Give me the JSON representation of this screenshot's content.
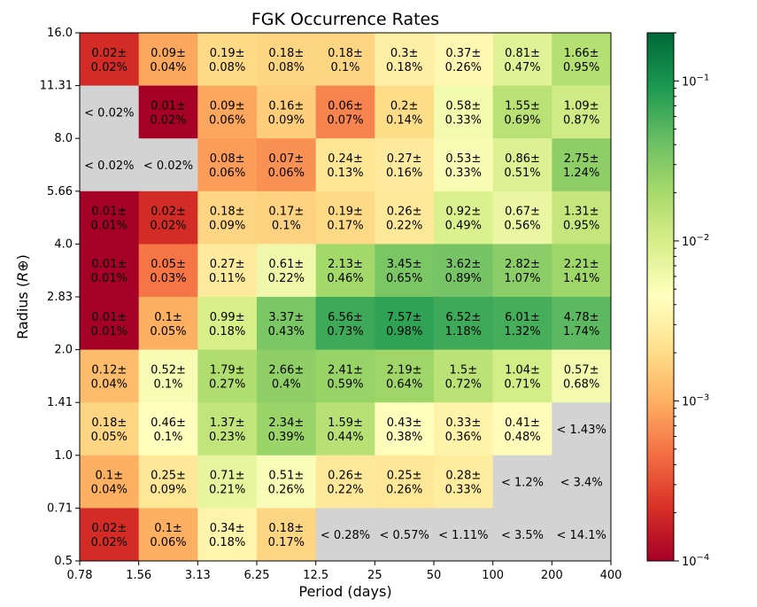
{
  "chart_data": {
    "type": "heatmap",
    "title": "FGK Occurrence Rates",
    "xlabel": "Period (days)",
    "ylabel_main": "Radius (",
    "ylabel_symbol": "R⊕",
    "ylabel_close": ")",
    "x_edges": [
      "0.78",
      "1.56",
      "3.13",
      "6.25",
      "12.5",
      "25",
      "50",
      "100",
      "200",
      "400"
    ],
    "y_edges": [
      "0.5",
      "0.71",
      "1.0",
      "1.41",
      "2.0",
      "2.83",
      "4.0",
      "5.66",
      "8.0",
      "11.31",
      "16.0"
    ],
    "x_scale": "log",
    "y_scale": "log",
    "colorbar": {
      "scale": "log",
      "colormap": "RdYlGn",
      "range": [
        0.0001,
        0.2
      ],
      "major_ticks": [
        {
          "value": 0.0001,
          "base": "10",
          "exp": "−4"
        },
        {
          "value": 0.001,
          "base": "10",
          "exp": "−3"
        },
        {
          "value": 0.01,
          "base": "10",
          "exp": "−2"
        },
        {
          "value": 0.1,
          "base": "10",
          "exp": "−1"
        }
      ]
    },
    "no_data_color": "#d3d3d3",
    "rows": [
      {
        "radius_bin": "11.31–16.0",
        "cells": [
          {
            "v": 0.0002,
            "l1": "0.02±",
            "l2": "0.02%"
          },
          {
            "v": 0.0009,
            "l1": "0.09±",
            "l2": "0.04%"
          },
          {
            "v": 0.0019,
            "l1": "0.19±",
            "l2": "0.08%"
          },
          {
            "v": 0.0018,
            "l1": "0.18±",
            "l2": "0.08%"
          },
          {
            "v": 0.0018,
            "l1": "0.18±",
            "l2": "0.1%"
          },
          {
            "v": 0.003,
            "l1": "0.3±",
            "l2": "0.18%"
          },
          {
            "v": 0.0037,
            "l1": "0.37±",
            "l2": "0.26%"
          },
          {
            "v": 0.0081,
            "l1": "0.81±",
            "l2": "0.47%"
          },
          {
            "v": 0.0166,
            "l1": "1.66±",
            "l2": "0.95%"
          }
        ]
      },
      {
        "radius_bin": "8.0–11.31",
        "cells": [
          {
            "v": null,
            "l1": "< 0.02%"
          },
          {
            "v": 0.0001,
            "l1": "0.01±",
            "l2": "0.02%"
          },
          {
            "v": 0.0009,
            "l1": "0.09±",
            "l2": "0.06%"
          },
          {
            "v": 0.0016,
            "l1": "0.16±",
            "l2": "0.09%"
          },
          {
            "v": 0.0006,
            "l1": "0.06±",
            "l2": "0.07%"
          },
          {
            "v": 0.002,
            "l1": "0.2±",
            "l2": "0.14%"
          },
          {
            "v": 0.0058,
            "l1": "0.58±",
            "l2": "0.33%"
          },
          {
            "v": 0.0155,
            "l1": "1.55±",
            "l2": "0.69%"
          },
          {
            "v": 0.0109,
            "l1": "1.09±",
            "l2": "0.87%"
          }
        ]
      },
      {
        "radius_bin": "5.66–8.0",
        "cells": [
          {
            "v": null,
            "l1": "< 0.02%"
          },
          {
            "v": null,
            "l1": "< 0.02%"
          },
          {
            "v": 0.0008,
            "l1": "0.08±",
            "l2": "0.06%"
          },
          {
            "v": 0.0007,
            "l1": "0.07±",
            "l2": "0.06%"
          },
          {
            "v": 0.0024,
            "l1": "0.24±",
            "l2": "0.13%"
          },
          {
            "v": 0.0027,
            "l1": "0.27±",
            "l2": "0.16%"
          },
          {
            "v": 0.0053,
            "l1": "0.53±",
            "l2": "0.33%"
          },
          {
            "v": 0.0086,
            "l1": "0.86±",
            "l2": "0.51%"
          },
          {
            "v": 0.0275,
            "l1": "2.75±",
            "l2": "1.24%"
          }
        ]
      },
      {
        "radius_bin": "4.0–5.66",
        "cells": [
          {
            "v": 0.0001,
            "l1": "0.01±",
            "l2": "0.01%"
          },
          {
            "v": 0.0002,
            "l1": "0.02±",
            "l2": "0.02%"
          },
          {
            "v": 0.0018,
            "l1": "0.18±",
            "l2": "0.09%"
          },
          {
            "v": 0.0017,
            "l1": "0.17±",
            "l2": "0.1%"
          },
          {
            "v": 0.0019,
            "l1": "0.19±",
            "l2": "0.17%"
          },
          {
            "v": 0.0026,
            "l1": "0.26±",
            "l2": "0.22%"
          },
          {
            "v": 0.0092,
            "l1": "0.92±",
            "l2": "0.49%"
          },
          {
            "v": 0.0067,
            "l1": "0.67±",
            "l2": "0.56%"
          },
          {
            "v": 0.0131,
            "l1": "1.31±",
            "l2": "0.95%"
          }
        ]
      },
      {
        "radius_bin": "2.83–4.0",
        "cells": [
          {
            "v": 0.0001,
            "l1": "0.01±",
            "l2": "0.01%"
          },
          {
            "v": 0.0005,
            "l1": "0.05±",
            "l2": "0.03%"
          },
          {
            "v": 0.0027,
            "l1": "0.27±",
            "l2": "0.11%"
          },
          {
            "v": 0.0061,
            "l1": "0.61±",
            "l2": "0.22%"
          },
          {
            "v": 0.0213,
            "l1": "2.13±",
            "l2": "0.46%"
          },
          {
            "v": 0.0345,
            "l1": "3.45±",
            "l2": "0.65%"
          },
          {
            "v": 0.0362,
            "l1": "3.62±",
            "l2": "0.89%"
          },
          {
            "v": 0.0282,
            "l1": "2.82±",
            "l2": "1.07%"
          },
          {
            "v": 0.0221,
            "l1": "2.21±",
            "l2": "1.41%"
          }
        ]
      },
      {
        "radius_bin": "2.0–2.83",
        "cells": [
          {
            "v": 0.0001,
            "l1": "0.01±",
            "l2": "0.01%"
          },
          {
            "v": 0.001,
            "l1": "0.1±",
            "l2": "0.05%"
          },
          {
            "v": 0.0099,
            "l1": "0.99±",
            "l2": "0.18%"
          },
          {
            "v": 0.0337,
            "l1": "3.37±",
            "l2": "0.43%"
          },
          {
            "v": 0.0656,
            "l1": "6.56±",
            "l2": "0.73%"
          },
          {
            "v": 0.0757,
            "l1": "7.57±",
            "l2": "0.98%"
          },
          {
            "v": 0.0652,
            "l1": "6.52±",
            "l2": "1.18%"
          },
          {
            "v": 0.0601,
            "l1": "6.01±",
            "l2": "1.32%"
          },
          {
            "v": 0.0478,
            "l1": "4.78±",
            "l2": "1.74%"
          }
        ]
      },
      {
        "radius_bin": "1.41–2.0",
        "cells": [
          {
            "v": 0.0012,
            "l1": "0.12±",
            "l2": "0.04%"
          },
          {
            "v": 0.0052,
            "l1": "0.52±",
            "l2": "0.1%"
          },
          {
            "v": 0.0179,
            "l1": "1.79±",
            "l2": "0.27%"
          },
          {
            "v": 0.0266,
            "l1": "2.66±",
            "l2": "0.4%"
          },
          {
            "v": 0.0241,
            "l1": "2.41±",
            "l2": "0.59%"
          },
          {
            "v": 0.0219,
            "l1": "2.19±",
            "l2": "0.64%"
          },
          {
            "v": 0.015,
            "l1": "1.5±",
            "l2": "0.72%"
          },
          {
            "v": 0.0104,
            "l1": "1.04±",
            "l2": "0.71%"
          },
          {
            "v": 0.0057,
            "l1": "0.57±",
            "l2": "0.68%"
          }
        ]
      },
      {
        "radius_bin": "1.0–1.41",
        "cells": [
          {
            "v": 0.0018,
            "l1": "0.18±",
            "l2": "0.05%"
          },
          {
            "v": 0.0046,
            "l1": "0.46±",
            "l2": "0.1%"
          },
          {
            "v": 0.0137,
            "l1": "1.37±",
            "l2": "0.23%"
          },
          {
            "v": 0.0234,
            "l1": "2.34±",
            "l2": "0.39%"
          },
          {
            "v": 0.0159,
            "l1": "1.59±",
            "l2": "0.44%"
          },
          {
            "v": 0.0043,
            "l1": "0.43±",
            "l2": "0.38%"
          },
          {
            "v": 0.0033,
            "l1": "0.33±",
            "l2": "0.36%"
          },
          {
            "v": 0.0041,
            "l1": "0.41±",
            "l2": "0.48%"
          },
          {
            "v": null,
            "l1": "< 1.43%"
          }
        ]
      },
      {
        "radius_bin": "0.71–1.0",
        "cells": [
          {
            "v": 0.001,
            "l1": "0.1±",
            "l2": "0.04%"
          },
          {
            "v": 0.0025,
            "l1": "0.25±",
            "l2": "0.09%"
          },
          {
            "v": 0.0071,
            "l1": "0.71±",
            "l2": "0.21%"
          },
          {
            "v": 0.0051,
            "l1": "0.51±",
            "l2": "0.26%"
          },
          {
            "v": 0.0026,
            "l1": "0.26±",
            "l2": "0.22%"
          },
          {
            "v": 0.0025,
            "l1": "0.25±",
            "l2": "0.26%"
          },
          {
            "v": 0.0028,
            "l1": "0.28±",
            "l2": "0.33%"
          },
          {
            "v": null,
            "l1": "< 1.2%"
          },
          {
            "v": null,
            "l1": "< 3.4%"
          }
        ]
      },
      {
        "radius_bin": "0.5–0.71",
        "cells": [
          {
            "v": 0.0002,
            "l1": "0.02±",
            "l2": "0.02%"
          },
          {
            "v": 0.001,
            "l1": "0.1±",
            "l2": "0.06%"
          },
          {
            "v": 0.0034,
            "l1": "0.34±",
            "l2": "0.18%"
          },
          {
            "v": 0.0018,
            "l1": "0.18±",
            "l2": "0.17%"
          },
          {
            "v": null,
            "l1": "< 0.28%"
          },
          {
            "v": null,
            "l1": "< 0.57%"
          },
          {
            "v": null,
            "l1": "< 1.11%"
          },
          {
            "v": null,
            "l1": "< 3.5%"
          },
          {
            "v": null,
            "l1": "< 14.1%"
          }
        ]
      }
    ]
  }
}
